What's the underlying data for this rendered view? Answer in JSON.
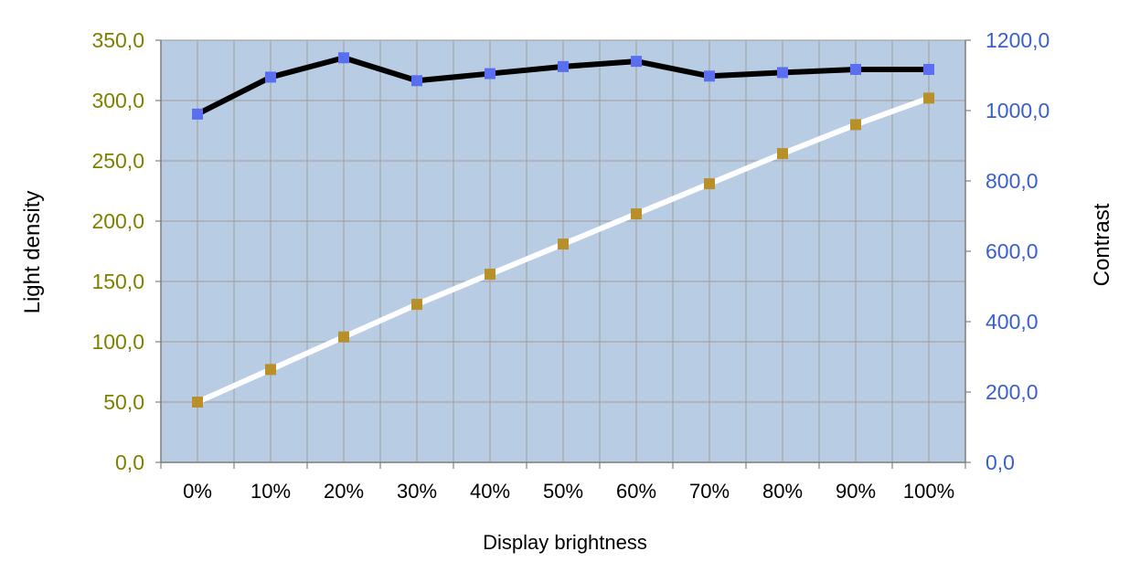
{
  "chart_data": {
    "type": "line",
    "categories": [
      "0%",
      "10%",
      "20%",
      "30%",
      "40%",
      "50%",
      "60%",
      "70%",
      "80%",
      "90%",
      "100%"
    ],
    "xlabel": "Display brightness",
    "ylabel_left": "Light density",
    "ylabel_right": "Contrast",
    "ylim_left": [
      0,
      350
    ],
    "ylim_right": [
      0,
      1200
    ],
    "yticks_left": [
      "0,0",
      "50,0",
      "100,0",
      "150,0",
      "200,0",
      "250,0",
      "300,0",
      "350,0"
    ],
    "yticks_right": [
      "0,0",
      "200,0",
      "400,0",
      "600,0",
      "800,0",
      "1000,0",
      "1200,0"
    ],
    "grid": true,
    "legend": "none",
    "series": [
      {
        "axis": "left",
        "values": [
          50,
          77,
          104,
          131,
          156,
          181,
          206,
          231,
          256,
          280,
          302
        ],
        "line_color": "#ffffff",
        "marker_color": "#b8902a"
      },
      {
        "axis": "right",
        "values": [
          990,
          1095,
          1150,
          1085,
          1105,
          1125,
          1140,
          1098,
          1108,
          1117,
          1117
        ],
        "line_color": "#000000",
        "marker_color": "#5a6ef0"
      }
    ],
    "colors": {
      "plot_background": "#b8cce4",
      "grid": "#a6a6a6",
      "left_axis_text": "#808000",
      "right_axis_text": "#3a5fd0",
      "axis_title": "#000000"
    }
  }
}
